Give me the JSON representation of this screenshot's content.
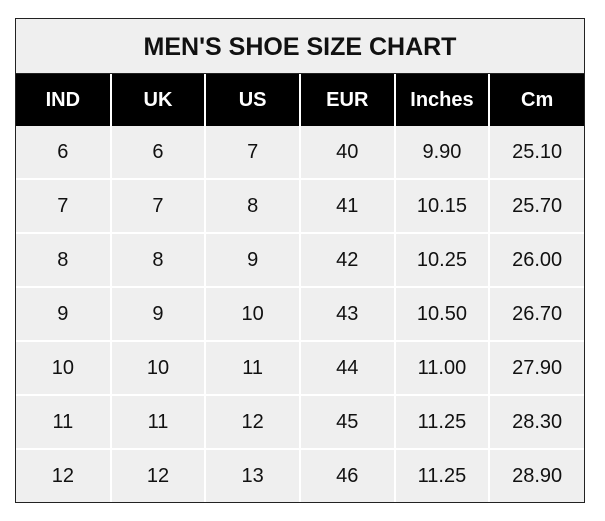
{
  "title": "MEN'S SHOE SIZE CHART",
  "headers": [
    "IND",
    "UK",
    "US",
    "EUR",
    "Inches",
    "Cm"
  ],
  "rows": [
    [
      "6",
      "6",
      "7",
      "40",
      "9.90",
      "25.10"
    ],
    [
      "7",
      "7",
      "8",
      "41",
      "10.15",
      "25.70"
    ],
    [
      "8",
      "8",
      "9",
      "42",
      "10.25",
      "26.00"
    ],
    [
      "9",
      "9",
      "10",
      "43",
      "10.50",
      "26.70"
    ],
    [
      "10",
      "10",
      "11",
      "44",
      "11.00",
      "27.90"
    ],
    [
      "11",
      "11",
      "12",
      "45",
      "11.25",
      "28.30"
    ],
    [
      "12",
      "12",
      "13",
      "46",
      "11.25",
      "28.90"
    ]
  ],
  "colors": {
    "header_bg": "#000000",
    "header_text": "#ffffff",
    "cell_bg": "#efefef"
  }
}
